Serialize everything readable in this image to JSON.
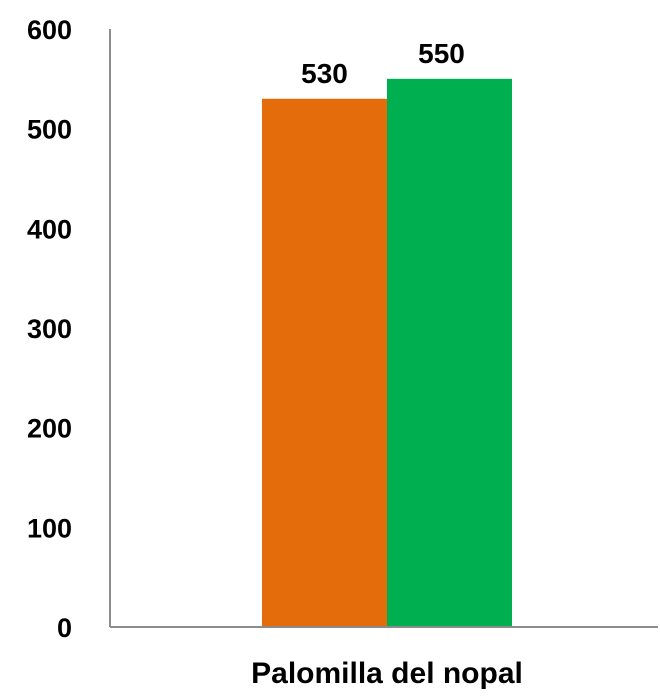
{
  "chart_data": {
    "type": "bar",
    "categories": [
      "Palomilla del nopal"
    ],
    "series": [
      {
        "values": [
          530
        ],
        "color": "#E46C0A"
      },
      {
        "values": [
          550
        ],
        "color": "#00B050"
      }
    ],
    "data_labels": [
      "530",
      "550"
    ],
    "title": "",
    "xlabel": "",
    "ylabel": "",
    "ylim": [
      0,
      600
    ],
    "yticks": [
      0,
      100,
      200,
      300,
      400,
      500,
      600
    ],
    "grid": false,
    "legend": "none"
  }
}
